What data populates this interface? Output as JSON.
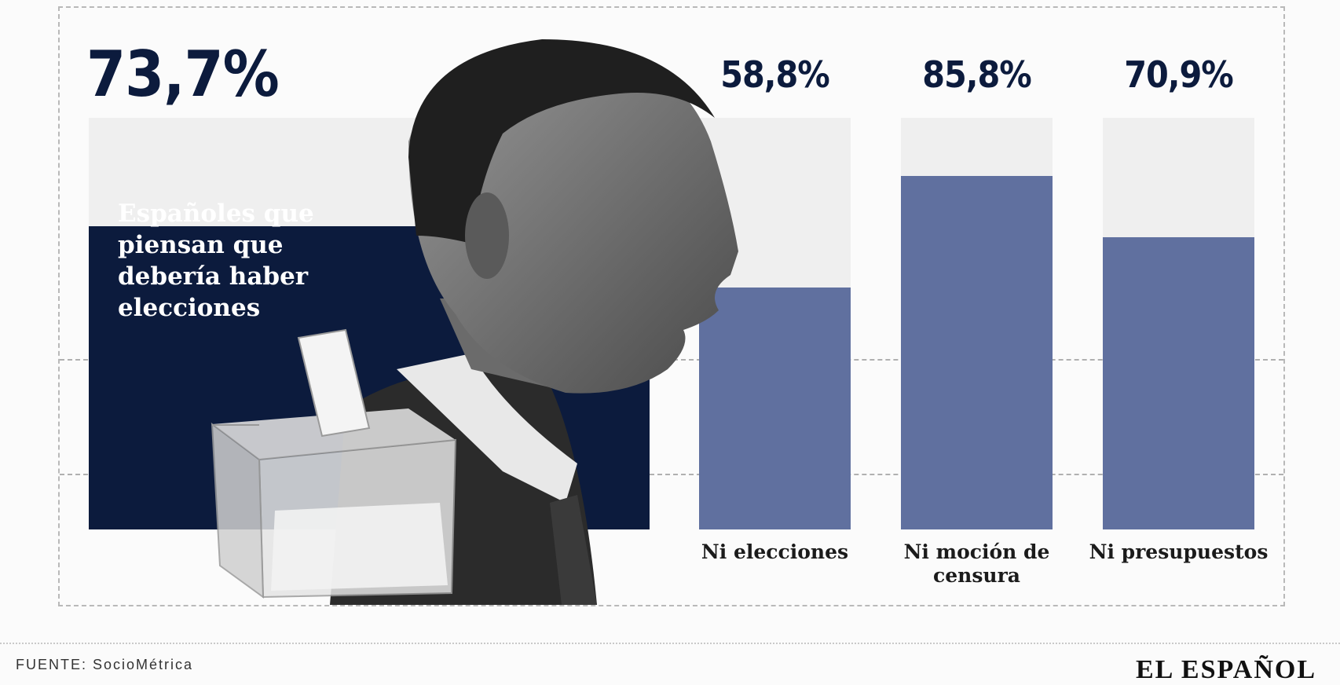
{
  "chart_data": {
    "type": "bar",
    "main": {
      "value": 73.7,
      "value_label": "73,7%",
      "description": "Españoles que piensan que debería haber elecciones",
      "color": "#0c1b3d"
    },
    "categories": [
      "Ni elecciones",
      "Ni moción de censura",
      "Ni presupuestos"
    ],
    "values": [
      58.8,
      85.8,
      70.9
    ],
    "value_labels": [
      "58,8%",
      "85,8%",
      "70,9%"
    ],
    "ylim": [
      0,
      100
    ],
    "bar_color": "#60709f",
    "track_color": "#efefef",
    "grid": true
  },
  "footer": {
    "source": "FUENTE: SocioMétrica",
    "logo": "EL ESPAÑOL"
  }
}
